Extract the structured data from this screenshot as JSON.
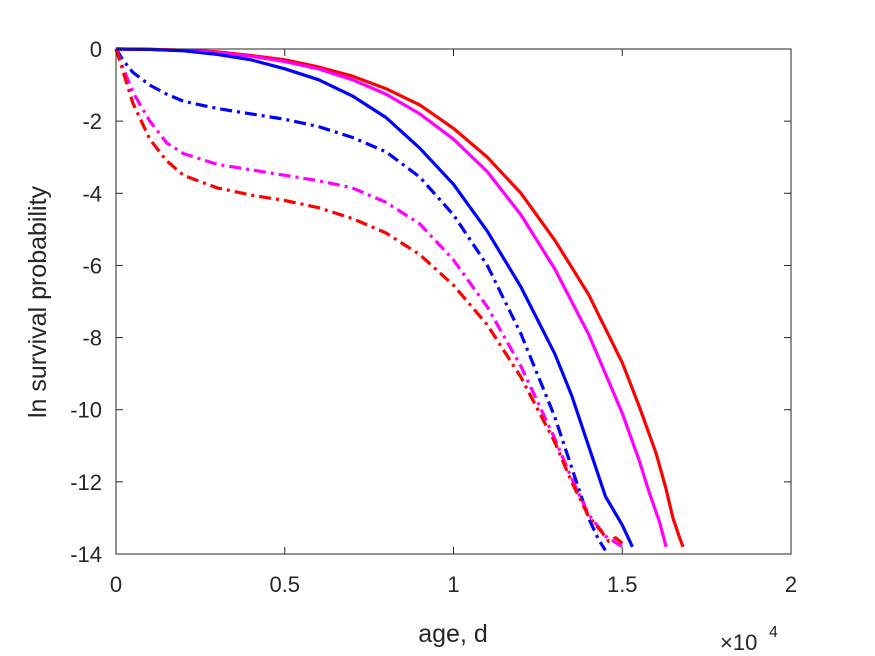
{
  "chart_data": {
    "type": "line",
    "title": "",
    "xlabel": "age, d",
    "ylabel": "ln survival probability",
    "x_exponent_label": "×10",
    "x_exponent_power": "4",
    "xlim": [
      0,
      2
    ],
    "ylim": [
      -14,
      0
    ],
    "x_ticks": [
      0,
      0.5,
      1,
      1.5,
      2
    ],
    "x_tick_labels": [
      "0",
      "0.5",
      "1",
      "1.5",
      "2"
    ],
    "y_ticks": [
      0,
      -2,
      -4,
      -6,
      -8,
      -10,
      -12,
      -14
    ],
    "y_tick_labels": [
      "0",
      "-2",
      "-4",
      "-6",
      "-8",
      "-10",
      "-12",
      "-14"
    ],
    "grid": false,
    "legend": "none",
    "series": [
      {
        "color": "#ff0000",
        "style": "solid",
        "points": [
          [
            0,
            0
          ],
          [
            0.1,
            -0.01
          ],
          [
            0.2,
            -0.03
          ],
          [
            0.3,
            -0.08
          ],
          [
            0.4,
            -0.18
          ],
          [
            0.5,
            -0.3
          ],
          [
            0.6,
            -0.5
          ],
          [
            0.7,
            -0.75
          ],
          [
            0.8,
            -1.1
          ],
          [
            0.9,
            -1.55
          ],
          [
            1.0,
            -2.2
          ],
          [
            1.1,
            -3.0
          ],
          [
            1.2,
            -4.0
          ],
          [
            1.3,
            -5.3
          ],
          [
            1.4,
            -6.8
          ],
          [
            1.5,
            -8.7
          ],
          [
            1.55,
            -9.9
          ],
          [
            1.6,
            -11.2
          ],
          [
            1.63,
            -12.2
          ],
          [
            1.65,
            -13.0
          ],
          [
            1.67,
            -13.55
          ],
          [
            1.68,
            -13.8
          ]
        ]
      },
      {
        "color": "#ff00ff",
        "style": "solid",
        "points": [
          [
            0,
            0
          ],
          [
            0.1,
            -0.01
          ],
          [
            0.2,
            -0.04
          ],
          [
            0.3,
            -0.1
          ],
          [
            0.4,
            -0.2
          ],
          [
            0.5,
            -0.35
          ],
          [
            0.6,
            -0.55
          ],
          [
            0.7,
            -0.85
          ],
          [
            0.8,
            -1.25
          ],
          [
            0.9,
            -1.8
          ],
          [
            1.0,
            -2.5
          ],
          [
            1.1,
            -3.4
          ],
          [
            1.2,
            -4.6
          ],
          [
            1.3,
            -6.1
          ],
          [
            1.4,
            -7.9
          ],
          [
            1.5,
            -10.1
          ],
          [
            1.55,
            -11.4
          ],
          [
            1.58,
            -12.3
          ],
          [
            1.61,
            -13.1
          ],
          [
            1.63,
            -13.8
          ]
        ]
      },
      {
        "color": "#0000ff",
        "style": "solid",
        "points": [
          [
            0,
            0
          ],
          [
            0.1,
            -0.01
          ],
          [
            0.2,
            -0.05
          ],
          [
            0.3,
            -0.15
          ],
          [
            0.4,
            -0.3
          ],
          [
            0.5,
            -0.55
          ],
          [
            0.6,
            -0.85
          ],
          [
            0.7,
            -1.3
          ],
          [
            0.8,
            -1.9
          ],
          [
            0.9,
            -2.75
          ],
          [
            1.0,
            -3.75
          ],
          [
            1.1,
            -5.05
          ],
          [
            1.2,
            -6.6
          ],
          [
            1.3,
            -8.45
          ],
          [
            1.35,
            -9.6
          ],
          [
            1.4,
            -11.0
          ],
          [
            1.45,
            -12.4
          ],
          [
            1.5,
            -13.2
          ],
          [
            1.53,
            -13.8
          ]
        ]
      },
      {
        "color": "#0000ff",
        "style": "dashdot",
        "points": [
          [
            0,
            0
          ],
          [
            0.02,
            -0.3
          ],
          [
            0.05,
            -0.65
          ],
          [
            0.1,
            -1.0
          ],
          [
            0.15,
            -1.25
          ],
          [
            0.2,
            -1.45
          ],
          [
            0.3,
            -1.65
          ],
          [
            0.4,
            -1.8
          ],
          [
            0.5,
            -1.95
          ],
          [
            0.6,
            -2.15
          ],
          [
            0.7,
            -2.45
          ],
          [
            0.8,
            -2.85
          ],
          [
            0.9,
            -3.55
          ],
          [
            1.0,
            -4.6
          ],
          [
            1.1,
            -6.0
          ],
          [
            1.2,
            -7.9
          ],
          [
            1.3,
            -10.2
          ],
          [
            1.35,
            -11.6
          ],
          [
            1.4,
            -13.0
          ],
          [
            1.43,
            -13.6
          ],
          [
            1.45,
            -13.9
          ]
        ]
      },
      {
        "color": "#ff00ff",
        "style": "dashdot",
        "points": [
          [
            0,
            0
          ],
          [
            0.02,
            -0.5
          ],
          [
            0.05,
            -1.2
          ],
          [
            0.1,
            -2.0
          ],
          [
            0.15,
            -2.6
          ],
          [
            0.2,
            -2.9
          ],
          [
            0.3,
            -3.2
          ],
          [
            0.4,
            -3.35
          ],
          [
            0.5,
            -3.5
          ],
          [
            0.6,
            -3.65
          ],
          [
            0.7,
            -3.85
          ],
          [
            0.8,
            -4.25
          ],
          [
            0.9,
            -4.85
          ],
          [
            1.0,
            -5.85
          ],
          [
            1.1,
            -7.15
          ],
          [
            1.2,
            -8.8
          ],
          [
            1.3,
            -10.8
          ],
          [
            1.35,
            -11.9
          ],
          [
            1.4,
            -12.9
          ],
          [
            1.45,
            -13.5
          ],
          [
            1.5,
            -13.8
          ]
        ]
      },
      {
        "color": "#ff0000",
        "style": "dashdot",
        "points": [
          [
            0,
            0
          ],
          [
            0.02,
            -0.6
          ],
          [
            0.05,
            -1.5
          ],
          [
            0.1,
            -2.5
          ],
          [
            0.15,
            -3.1
          ],
          [
            0.2,
            -3.5
          ],
          [
            0.3,
            -3.85
          ],
          [
            0.4,
            -4.05
          ],
          [
            0.5,
            -4.2
          ],
          [
            0.6,
            -4.4
          ],
          [
            0.7,
            -4.7
          ],
          [
            0.8,
            -5.1
          ],
          [
            0.9,
            -5.7
          ],
          [
            1.0,
            -6.55
          ],
          [
            1.1,
            -7.65
          ],
          [
            1.2,
            -9.1
          ],
          [
            1.3,
            -10.9
          ],
          [
            1.35,
            -12.0
          ],
          [
            1.4,
            -12.95
          ],
          [
            1.44,
            -13.4
          ],
          [
            1.46,
            -13.65
          ],
          [
            1.48,
            -13.55
          ],
          [
            1.5,
            -13.7
          ]
        ]
      }
    ]
  }
}
